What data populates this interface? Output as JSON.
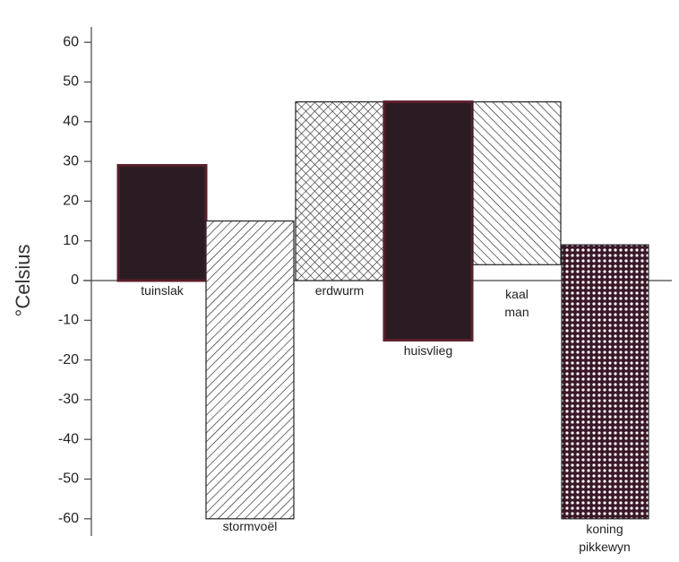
{
  "chart_data": {
    "type": "bar",
    "ylabel": "°Celsius",
    "ylim": [
      -60,
      60
    ],
    "yticks": [
      60,
      50,
      40,
      30,
      20,
      10,
      0,
      -10,
      -20,
      -30,
      -40,
      -50,
      -60
    ],
    "grid": false,
    "bars": [
      {
        "label": [
          "tuinslak"
        ],
        "low": 0,
        "high": 29,
        "fill": "solid"
      },
      {
        "label": [
          "stormvoël"
        ],
        "low": -60,
        "high": 15,
        "fill": "diag-fwd"
      },
      {
        "label": [
          "erdwurm"
        ],
        "low": 0,
        "high": 45,
        "fill": "crosshatch"
      },
      {
        "label": [
          "huisvlieg"
        ],
        "low": -15,
        "high": 45,
        "fill": "solid"
      },
      {
        "label": [
          "kaal",
          "man"
        ],
        "low": 4,
        "high": 45,
        "fill": "diag-back"
      },
      {
        "label": [
          "koning",
          "pikkewyn"
        ],
        "low": -60,
        "high": 9,
        "fill": "dots"
      }
    ]
  },
  "colors": {
    "solid": "#2a1c22",
    "line": "#222222",
    "dots": "#3a1828"
  }
}
